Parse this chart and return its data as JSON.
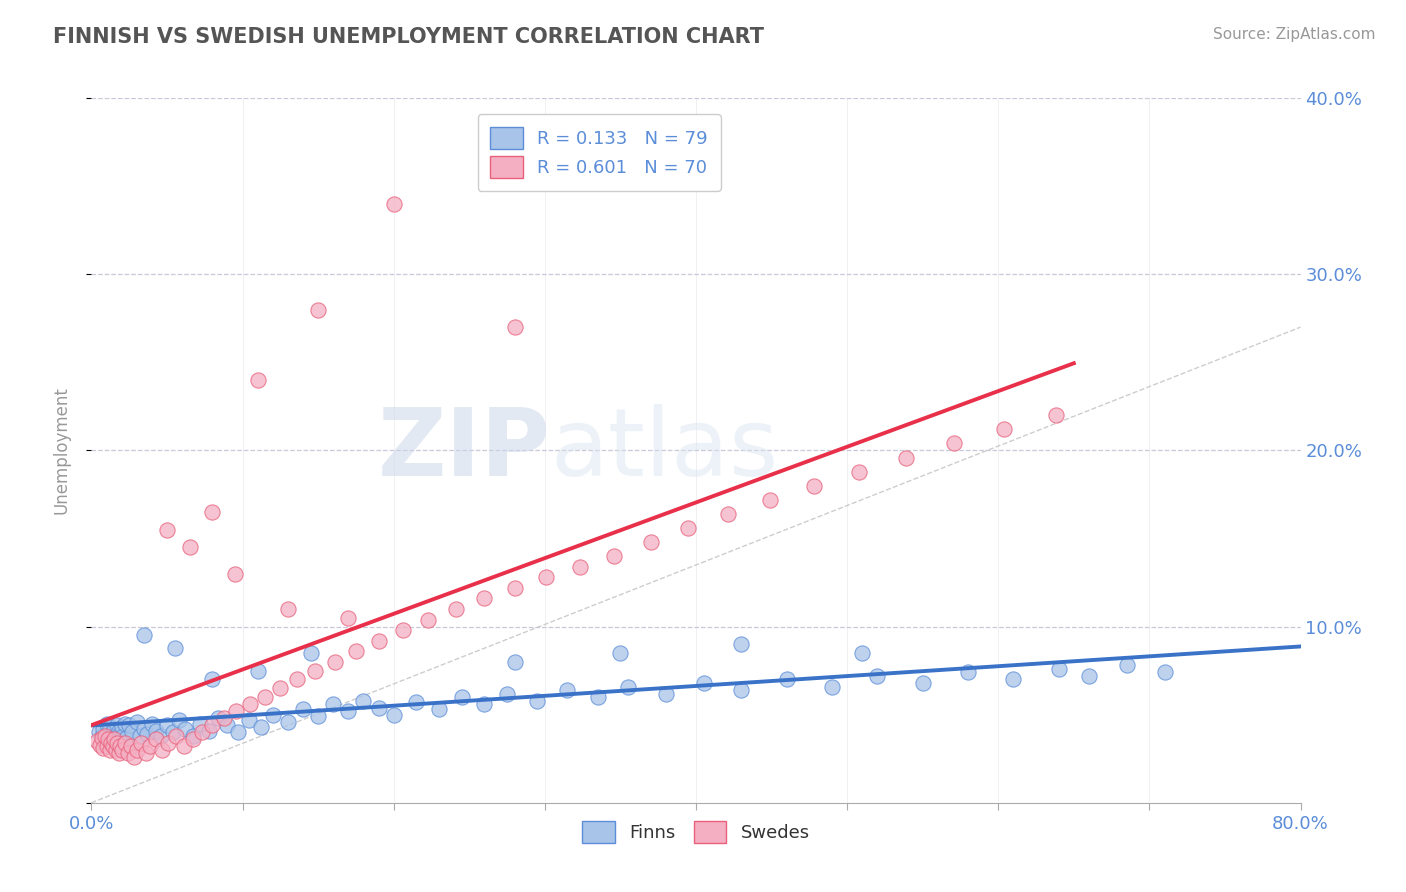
{
  "title": "FINNISH VS SWEDISH UNEMPLOYMENT CORRELATION CHART",
  "source_text": "Source: ZipAtlas.com",
  "ylabel": "Unemployment",
  "xlim": [
    0,
    0.8
  ],
  "ylim": [
    0,
    0.4
  ],
  "legend_r1": "R = 0.133",
  "legend_n1": "N = 79",
  "legend_r2": "R = 0.601",
  "legend_n2": "N = 70",
  "watermark_zip": "ZIP",
  "watermark_atlas": "atlas",
  "finn_color": "#a8c4e8",
  "swede_color": "#f4afc3",
  "finn_edge_color": "#5b8dd9",
  "swede_edge_color": "#e8607a",
  "finn_line_color": "#3a72c8",
  "swede_line_color": "#e8304a",
  "ref_line_color": "#c8c8c8",
  "background_color": "#ffffff",
  "grid_color": "#c8c8d8",
  "title_color": "#555555",
  "axis_label_color": "#5b8dd9",
  "legend_text_color": "#5b8dd9",
  "finns_x": [
    0.005,
    0.007,
    0.008,
    0.009,
    0.01,
    0.011,
    0.012,
    0.013,
    0.014,
    0.015,
    0.016,
    0.017,
    0.018,
    0.019,
    0.02,
    0.021,
    0.022,
    0.023,
    0.025,
    0.027,
    0.03,
    0.032,
    0.035,
    0.037,
    0.04,
    0.043,
    0.046,
    0.05,
    0.054,
    0.058,
    0.062,
    0.067,
    0.072,
    0.078,
    0.084,
    0.09,
    0.097,
    0.104,
    0.112,
    0.12,
    0.13,
    0.14,
    0.15,
    0.16,
    0.17,
    0.18,
    0.19,
    0.2,
    0.215,
    0.23,
    0.245,
    0.26,
    0.275,
    0.295,
    0.315,
    0.335,
    0.355,
    0.38,
    0.405,
    0.43,
    0.46,
    0.49,
    0.52,
    0.55,
    0.58,
    0.61,
    0.64,
    0.66,
    0.685,
    0.71,
    0.035,
    0.055,
    0.08,
    0.11,
    0.145,
    0.28,
    0.35,
    0.43,
    0.51
  ],
  "finns_y": [
    0.04,
    0.038,
    0.042,
    0.035,
    0.045,
    0.037,
    0.043,
    0.038,
    0.04,
    0.042,
    0.036,
    0.044,
    0.041,
    0.039,
    0.043,
    0.038,
    0.045,
    0.037,
    0.044,
    0.04,
    0.046,
    0.038,
    0.042,
    0.039,
    0.045,
    0.041,
    0.038,
    0.044,
    0.04,
    0.047,
    0.042,
    0.038,
    0.045,
    0.041,
    0.048,
    0.044,
    0.04,
    0.047,
    0.043,
    0.05,
    0.046,
    0.053,
    0.049,
    0.056,
    0.052,
    0.058,
    0.054,
    0.05,
    0.057,
    0.053,
    0.06,
    0.056,
    0.062,
    0.058,
    0.064,
    0.06,
    0.066,
    0.062,
    0.068,
    0.064,
    0.07,
    0.066,
    0.072,
    0.068,
    0.074,
    0.07,
    0.076,
    0.072,
    0.078,
    0.074,
    0.095,
    0.088,
    0.07,
    0.075,
    0.085,
    0.08,
    0.085,
    0.09,
    0.085
  ],
  "swedes_x": [
    0.004,
    0.006,
    0.007,
    0.008,
    0.009,
    0.01,
    0.011,
    0.012,
    0.013,
    0.014,
    0.015,
    0.016,
    0.017,
    0.018,
    0.019,
    0.02,
    0.022,
    0.024,
    0.026,
    0.028,
    0.03,
    0.033,
    0.036,
    0.039,
    0.043,
    0.047,
    0.051,
    0.056,
    0.061,
    0.067,
    0.073,
    0.08,
    0.088,
    0.096,
    0.105,
    0.115,
    0.125,
    0.136,
    0.148,
    0.161,
    0.175,
    0.19,
    0.206,
    0.223,
    0.241,
    0.26,
    0.28,
    0.301,
    0.323,
    0.346,
    0.37,
    0.395,
    0.421,
    0.449,
    0.478,
    0.508,
    0.539,
    0.571,
    0.604,
    0.638,
    0.05,
    0.08,
    0.11,
    0.15,
    0.2,
    0.28,
    0.065,
    0.095,
    0.13,
    0.17
  ],
  "swedes_y": [
    0.035,
    0.033,
    0.037,
    0.031,
    0.038,
    0.032,
    0.036,
    0.03,
    0.034,
    0.032,
    0.036,
    0.03,
    0.034,
    0.028,
    0.032,
    0.03,
    0.034,
    0.028,
    0.032,
    0.026,
    0.03,
    0.034,
    0.028,
    0.032,
    0.036,
    0.03,
    0.034,
    0.038,
    0.032,
    0.036,
    0.04,
    0.044,
    0.048,
    0.052,
    0.056,
    0.06,
    0.065,
    0.07,
    0.075,
    0.08,
    0.086,
    0.092,
    0.098,
    0.104,
    0.11,
    0.116,
    0.122,
    0.128,
    0.134,
    0.14,
    0.148,
    0.156,
    0.164,
    0.172,
    0.18,
    0.188,
    0.196,
    0.204,
    0.212,
    0.22,
    0.155,
    0.165,
    0.24,
    0.28,
    0.34,
    0.27,
    0.145,
    0.13,
    0.11,
    0.105
  ]
}
